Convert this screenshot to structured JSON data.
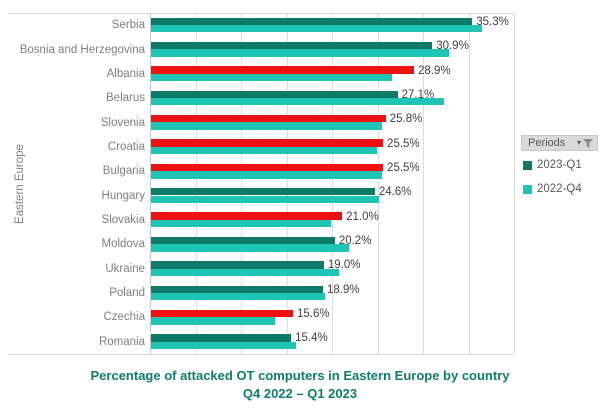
{
  "chart": {
    "title_line1": "Percentage of attacked OT computers in Eastern Europe by country",
    "title_line2": "Q4 2022 – Q1 2023",
    "y_axis_label": "Eastern Europe"
  },
  "legend": {
    "header_label": "Periods",
    "dropdown_arrow_icon": "▾",
    "filter_icon": "funnel-icon",
    "items": [
      {
        "label": "2023-Q1",
        "swatch_color": "#0E7B68"
      },
      {
        "label": "2022-Q4",
        "swatch_color": "#1EC5B4"
      }
    ]
  },
  "palette": {
    "q1_decrease_green": "#0E7B68",
    "q1_increase_red": "#EE1111",
    "q4_teal": "#1EC5B4",
    "gridline": "#DCDCDC",
    "axis_line": "#C9C9C9",
    "category_text": "#7F7F7F",
    "data_label_text": "#404040",
    "legend_text": "#595959",
    "title_text": "#0E7D6F",
    "legend_button_bg": "#DADADA"
  },
  "chart_data": {
    "type": "bar",
    "orientation": "horizontal",
    "title": "Percentage of attacked OT computers in Eastern Europe by country Q4 2022 – Q1 2023",
    "xlabel": "",
    "ylabel": "Eastern Europe",
    "xlim": [
      0,
      40
    ],
    "grid_step_pct": 5,
    "grid": true,
    "legend_position": "right",
    "categories": [
      "Serbia",
      "Bosnia and Herzegovina",
      "Albania",
      "Belarus",
      "Slovenia",
      "Croatia",
      "Bulgaria",
      "Hungary",
      "Slovakia",
      "Moldova",
      "Ukraine",
      "Poland",
      "Czechia",
      "Romania"
    ],
    "series": [
      {
        "name": "2023-Q1",
        "values": [
          35.3,
          30.9,
          28.9,
          27.1,
          25.8,
          25.5,
          25.5,
          24.6,
          21.0,
          20.2,
          19.0,
          18.9,
          15.6,
          15.4
        ],
        "point_colors": [
          "green",
          "green",
          "red",
          "green",
          "red",
          "red",
          "red",
          "green",
          "red",
          "green",
          "green",
          "green",
          "red",
          "green"
        ]
      },
      {
        "name": "2022-Q4",
        "values": [
          36.4,
          32.7,
          26.5,
          32.2,
          25.4,
          24.8,
          25.4,
          25.0,
          19.8,
          21.8,
          20.7,
          19.1,
          13.6,
          15.9
        ]
      }
    ],
    "data_labels": [
      "35.3%",
      "30.9%",
      "28.9%",
      "27.1%",
      "25.8%",
      "25.5%",
      "25.5%",
      "24.6%",
      "21.0%",
      "20.2%",
      "19.0%",
      "18.9%",
      "15.6%",
      "15.4%"
    ]
  }
}
